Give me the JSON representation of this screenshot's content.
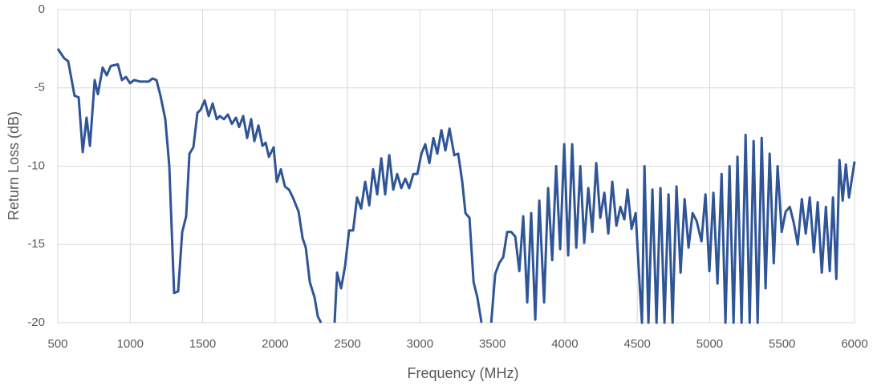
{
  "chart_data": {
    "type": "line",
    "x_label": "Frequency (MHz)",
    "y_label": "Return Loss (dB)",
    "xlim": [
      500,
      6000
    ],
    "xticks": [
      500,
      1000,
      1500,
      2000,
      2500,
      3000,
      3500,
      4000,
      4500,
      5000,
      5500,
      6000
    ],
    "ylim": [
      -20,
      0
    ],
    "yticks": [
      0,
      -5,
      -10,
      -15,
      -20
    ],
    "grid": true,
    "x": [
      500,
      544,
      572,
      616,
      644,
      672,
      699,
      722,
      755,
      777,
      810,
      838,
      866,
      915,
      943,
      971,
      999,
      1026,
      1071,
      1126,
      1154,
      1181,
      1209,
      1242,
      1270,
      1303,
      1331,
      1359,
      1386,
      1409,
      1436,
      1464,
      1486,
      1514,
      1542,
      1569,
      1597,
      1619,
      1647,
      1674,
      1702,
      1730,
      1752,
      1780,
      1807,
      1835,
      1857,
      1885,
      1913,
      1935,
      1957,
      1990,
      2012,
      2040,
      2068,
      2096,
      2123,
      2162,
      2190,
      2212,
      2240,
      2273,
      2295,
      2317,
      2360,
      2411,
      2428,
      2456,
      2483,
      2511,
      2539,
      2566,
      2594,
      2622,
      2650,
      2677,
      2705,
      2733,
      2760,
      2788,
      2816,
      2843,
      2871,
      2899,
      2926,
      2954,
      2982,
      3010,
      3037,
      3065,
      3093,
      3120,
      3148,
      3176,
      3204,
      3237,
      3264,
      3292,
      3314,
      3342,
      3370,
      3397,
      3425,
      3460,
      3492,
      3519,
      3547,
      3575,
      3602,
      3630,
      3658,
      3686,
      3713,
      3741,
      3768,
      3796,
      3824,
      3857,
      3885,
      3913,
      3940,
      3968,
      3996,
      4023,
      4051,
      4079,
      4107,
      4134,
      4162,
      4190,
      4217,
      4245,
      4273,
      4300,
      4328,
      4356,
      4384,
      4411,
      4433,
      4461,
      4489,
      4517,
      4533,
      4550,
      4577,
      4605,
      4633,
      4660,
      4688,
      4716,
      4744,
      4771,
      4799,
      4827,
      4854,
      4882,
      4910,
      4943,
      4971,
      4998,
      5026,
      5054,
      5082,
      5109,
      5137,
      5165,
      5192,
      5220,
      5248,
      5276,
      5303,
      5331,
      5359,
      5386,
      5414,
      5442,
      5469,
      5497,
      5525,
      5553,
      5580,
      5608,
      5636,
      5663,
      5691,
      5719,
      5746,
      5774,
      5802,
      5829,
      5851,
      5874,
      5896,
      5918,
      5940,
      5962,
      6000
    ],
    "series": [
      {
        "name": "Return Loss",
        "color": "#2f5597",
        "values": [
          -2.5,
          -3.1,
          -3.3,
          -5.5,
          -5.6,
          -9.1,
          -6.9,
          -8.7,
          -4.5,
          -5.4,
          -3.7,
          -4.2,
          -3.6,
          -3.5,
          -4.5,
          -4.3,
          -4.7,
          -4.5,
          -4.6,
          -4.6,
          -4.4,
          -4.5,
          -5.5,
          -7,
          -10,
          -18.1,
          -18,
          -14.2,
          -13.2,
          -9.2,
          -8.8,
          -6.6,
          -6.4,
          -5.8,
          -6.8,
          -6,
          -7,
          -6.8,
          -7,
          -6.7,
          -7.3,
          -6.9,
          -7.5,
          -6.8,
          -8.2,
          -7,
          -8.4,
          -7.4,
          -8.7,
          -8.5,
          -9.4,
          -8.8,
          -11,
          -10.2,
          -11.3,
          -11.5,
          -12,
          -12.9,
          -14.6,
          -15.2,
          -17.4,
          -18.4,
          -19.6,
          -20,
          null,
          -20,
          -16.8,
          -17.8,
          -16.4,
          -14.1,
          -14.1,
          -12,
          -12.7,
          -11,
          -12.5,
          -10.2,
          -11.8,
          -9.5,
          -11.8,
          -9.3,
          -11.5,
          -10.5,
          -11.4,
          -10.8,
          -11.4,
          -10.5,
          -10.5,
          -9.2,
          -8.6,
          -9.8,
          -8.2,
          -9.2,
          -7.7,
          -9,
          -7.6,
          -9.3,
          -9.2,
          -11,
          -13,
          -13.3,
          -17.4,
          -18.4,
          -20,
          null,
          -20,
          -16.9,
          -16.2,
          -15.8,
          -14.2,
          -14.2,
          -14.5,
          -16.7,
          -13.2,
          -18.7,
          -13,
          -19.8,
          -12.2,
          -18.7,
          -11.4,
          -16,
          -10,
          -15.3,
          -8.6,
          -15.7,
          -8.6,
          -15.2,
          -10,
          -14.9,
          -11.4,
          -14.2,
          -9.8,
          -13.3,
          -11.7,
          -14.3,
          -11,
          -13.8,
          -12.6,
          -13.4,
          -11.5,
          -14,
          -13,
          -17.7,
          -20,
          -10,
          -20,
          -11.5,
          -20,
          -11.4,
          -20,
          -11.8,
          -20,
          -11.3,
          -16.8,
          -12.1,
          -15.2,
          -13,
          -13.5,
          -14.8,
          -11.8,
          -16.7,
          -11.7,
          -17.5,
          -10.5,
          -20,
          -10,
          -20,
          -9.4,
          -20,
          -8,
          -20,
          -8.4,
          -20,
          -8.2,
          -17.8,
          -9.2,
          -16.2,
          -10,
          -14.2,
          -12.9,
          -12.6,
          -13.6,
          -15,
          -12.1,
          -14.3,
          -12,
          -15.5,
          -12.3,
          -16.8,
          -12.6,
          -16.7,
          -12,
          -17.2,
          -9.6,
          -12.2,
          -9.9,
          -12,
          -9.7
        ]
      }
    ]
  }
}
